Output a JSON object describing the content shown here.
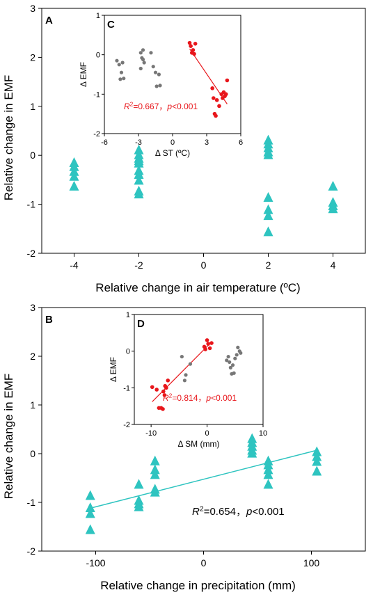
{
  "colors": {
    "main_marker": "#2ec4c0",
    "main_line": "#2ec4c0",
    "inset_gray": "#777777",
    "inset_red": "#e8161b"
  },
  "chart_data": [
    {
      "id": "A",
      "panel_label": "A",
      "type": "scatter",
      "marker": "triangle",
      "xlabel": "Relative change in air temperature (ºC)",
      "ylabel": "Relative change in EMF",
      "xlim": [
        -5,
        5
      ],
      "ylim": [
        -2,
        3
      ],
      "xticks": [
        -4,
        -2,
        0,
        2,
        4
      ],
      "yticks": [
        -2,
        -1,
        0,
        1,
        2,
        3
      ],
      "xtick_labels": [
        "-4",
        "-2",
        "0",
        "2",
        "4"
      ],
      "ytick_labels": [
        "-2",
        "-1",
        "0",
        "1",
        "2",
        "3"
      ],
      "points": [
        {
          "x": -4,
          "y": -0.14
        },
        {
          "x": -4,
          "y": -0.22
        },
        {
          "x": -4,
          "y": -0.32
        },
        {
          "x": -4,
          "y": -0.42
        },
        {
          "x": -4,
          "y": -0.62
        },
        {
          "x": -2,
          "y": 0.12
        },
        {
          "x": -2,
          "y": 0.02
        },
        {
          "x": -2,
          "y": -0.05
        },
        {
          "x": -2,
          "y": -0.1
        },
        {
          "x": -2,
          "y": -0.15
        },
        {
          "x": -2,
          "y": -0.3
        },
        {
          "x": -2,
          "y": -0.38
        },
        {
          "x": -2,
          "y": -0.5
        },
        {
          "x": -2,
          "y": -0.72
        },
        {
          "x": -2,
          "y": -0.78
        },
        {
          "x": 2,
          "y": 0.32
        },
        {
          "x": 2,
          "y": 0.24
        },
        {
          "x": 2,
          "y": 0.16
        },
        {
          "x": 2,
          "y": 0.08
        },
        {
          "x": 2,
          "y": 0.02
        },
        {
          "x": 2,
          "y": -0.85
        },
        {
          "x": 2,
          "y": -1.1
        },
        {
          "x": 2,
          "y": -1.22
        },
        {
          "x": 2,
          "y": -1.55
        },
        {
          "x": 4,
          "y": -0.62
        },
        {
          "x": 4,
          "y": -0.95
        },
        {
          "x": 4,
          "y": -1.02
        },
        {
          "x": 4,
          "y": -1.08
        }
      ],
      "inset": {
        "panel_label": "C",
        "type": "scatter",
        "xlabel": "Δ ST (ºC)",
        "ylabel": "Δ EMF",
        "xlim": [
          -6,
          6
        ],
        "ylim": [
          -2,
          1
        ],
        "xticks": [
          -6,
          -3,
          0,
          3,
          6
        ],
        "yticks": [
          -2,
          -1,
          0,
          1
        ],
        "xtick_labels": [
          "-6",
          "-3",
          "0",
          "3",
          "6"
        ],
        "ytick_labels": [
          "-2",
          "-1",
          "0",
          "1"
        ],
        "gray_points": [
          {
            "x": -4.9,
            "y": -0.15
          },
          {
            "x": -4.7,
            "y": -0.25
          },
          {
            "x": -4.4,
            "y": -0.2
          },
          {
            "x": -4.6,
            "y": -0.62
          },
          {
            "x": -4.3,
            "y": -0.6
          },
          {
            "x": -4.5,
            "y": -0.45
          },
          {
            "x": -2.8,
            "y": 0.05
          },
          {
            "x": -2.6,
            "y": 0.12
          },
          {
            "x": -2.7,
            "y": -0.08
          },
          {
            "x": -2.5,
            "y": -0.2
          },
          {
            "x": -2.8,
            "y": -0.35
          },
          {
            "x": -2.6,
            "y": -0.12
          },
          {
            "x": -1.9,
            "y": 0.05
          },
          {
            "x": -1.7,
            "y": -0.3
          },
          {
            "x": -1.5,
            "y": -0.45
          },
          {
            "x": -1.2,
            "y": -0.5
          },
          {
            "x": -1.4,
            "y": -0.8
          },
          {
            "x": -1.1,
            "y": -0.78
          }
        ],
        "red_points": [
          {
            "x": 1.5,
            "y": 0.3
          },
          {
            "x": 1.6,
            "y": 0.22
          },
          {
            "x": 1.8,
            "y": 0.12
          },
          {
            "x": 1.7,
            "y": 0.05
          },
          {
            "x": 2.0,
            "y": 0.28
          },
          {
            "x": 1.9,
            "y": 0.02
          },
          {
            "x": 3.5,
            "y": -0.85
          },
          {
            "x": 3.6,
            "y": -1.1
          },
          {
            "x": 3.7,
            "y": -1.5
          },
          {
            "x": 3.8,
            "y": -1.55
          },
          {
            "x": 3.9,
            "y": -1.15
          },
          {
            "x": 4.1,
            "y": -1.3
          },
          {
            "x": 4.3,
            "y": -1.0
          },
          {
            "x": 4.5,
            "y": -0.95
          },
          {
            "x": 4.6,
            "y": -1.05
          },
          {
            "x": 4.4,
            "y": -1.1
          },
          {
            "x": 4.8,
            "y": -0.65
          },
          {
            "x": 4.7,
            "y": -1.0
          }
        ],
        "fit_line": {
          "x": [
            1.5,
            4.8
          ],
          "y": [
            0.15,
            -1.25
          ]
        },
        "annotation": "R²=0.667，p<0.001"
      }
    },
    {
      "id": "B",
      "panel_label": "B",
      "type": "scatter",
      "marker": "triangle",
      "xlabel": "Relative change in precipitation (mm)",
      "ylabel": "Relative change in EMF",
      "xlim": [
        -150,
        150
      ],
      "ylim": [
        -2,
        3
      ],
      "xticks": [
        -100,
        0,
        100
      ],
      "yticks": [
        -2,
        -1,
        0,
        1,
        2,
        3
      ],
      "xtick_labels": [
        "-100",
        "0",
        "100"
      ],
      "ytick_labels": [
        "-2",
        "-1",
        "0",
        "1",
        "2",
        "3"
      ],
      "points": [
        {
          "x": -105,
          "y": -0.85
        },
        {
          "x": -105,
          "y": -1.1
        },
        {
          "x": -105,
          "y": -1.22
        },
        {
          "x": -105,
          "y": -1.55
        },
        {
          "x": -60,
          "y": -0.62
        },
        {
          "x": -60,
          "y": -0.95
        },
        {
          "x": -60,
          "y": -1.02
        },
        {
          "x": -60,
          "y": -1.08
        },
        {
          "x": -45,
          "y": -0.14
        },
        {
          "x": -45,
          "y": -0.32
        },
        {
          "x": -45,
          "y": -0.42
        },
        {
          "x": -45,
          "y": -0.72
        },
        {
          "x": -45,
          "y": -0.78
        },
        {
          "x": 45,
          "y": 0.32
        },
        {
          "x": 45,
          "y": 0.24
        },
        {
          "x": 45,
          "y": 0.16
        },
        {
          "x": 45,
          "y": 0.08
        },
        {
          "x": 45,
          "y": 0.02
        },
        {
          "x": 60,
          "y": -0.14
        },
        {
          "x": 60,
          "y": -0.22
        },
        {
          "x": 60,
          "y": -0.32
        },
        {
          "x": 60,
          "y": -0.42
        },
        {
          "x": 60,
          "y": -0.62
        },
        {
          "x": 105,
          "y": 0.05
        },
        {
          "x": 105,
          "y": -0.05
        },
        {
          "x": 105,
          "y": -0.15
        },
        {
          "x": 105,
          "y": -0.35
        }
      ],
      "fit_line": {
        "x": [
          -105,
          105
        ],
        "y": [
          -1.12,
          0.07
        ]
      },
      "annotation": "R²=0.654，p<0.001",
      "inset": {
        "panel_label": "D",
        "type": "scatter",
        "xlabel": "Δ SM (mm)",
        "ylabel": "Δ EMF",
        "xlim": [
          -13,
          10
        ],
        "ylim": [
          -2,
          1
        ],
        "xticks": [
          -10,
          0,
          10
        ],
        "yticks": [
          -2,
          -1,
          0,
          1
        ],
        "xtick_labels": [
          "-10",
          "0",
          "10"
        ],
        "ytick_labels": [
          "-2",
          "-1",
          "0",
          "1"
        ],
        "gray_points": [
          {
            "x": -4.5,
            "y": -0.15
          },
          {
            "x": -3.8,
            "y": -0.65
          },
          {
            "x": -4.0,
            "y": -0.8
          },
          {
            "x": -3.0,
            "y": -0.35
          },
          {
            "x": 3.5,
            "y": -0.25
          },
          {
            "x": 3.8,
            "y": -0.15
          },
          {
            "x": 4.0,
            "y": -0.3
          },
          {
            "x": 4.2,
            "y": -0.45
          },
          {
            "x": 4.4,
            "y": -0.62
          },
          {
            "x": 4.6,
            "y": -0.38
          },
          {
            "x": 4.8,
            "y": -0.6
          },
          {
            "x": 5.0,
            "y": -0.2
          },
          {
            "x": 5.3,
            "y": -0.1
          },
          {
            "x": 5.5,
            "y": 0.1
          },
          {
            "x": 5.8,
            "y": 0.0
          },
          {
            "x": 6.0,
            "y": -0.05
          }
        ],
        "red_points": [
          {
            "x": -9.8,
            "y": -0.98
          },
          {
            "x": -9.0,
            "y": -1.05
          },
          {
            "x": -8.6,
            "y": -1.55
          },
          {
            "x": -8.2,
            "y": -1.55
          },
          {
            "x": -7.9,
            "y": -1.58
          },
          {
            "x": -7.8,
            "y": -1.1
          },
          {
            "x": -7.6,
            "y": -1.2
          },
          {
            "x": -7.5,
            "y": -0.95
          },
          {
            "x": -7.3,
            "y": -1.0
          },
          {
            "x": -7.0,
            "y": -0.8
          },
          {
            "x": -0.5,
            "y": 0.12
          },
          {
            "x": -0.3,
            "y": 0.05
          },
          {
            "x": 0.0,
            "y": 0.3
          },
          {
            "x": 0.2,
            "y": 0.2
          },
          {
            "x": 0.5,
            "y": 0.08
          },
          {
            "x": 0.8,
            "y": 0.22
          }
        ],
        "fit_line": {
          "x": [
            -9.8,
            0.8
          ],
          "y": [
            -1.38,
            0.25
          ]
        },
        "annotation": "R²=0.814，p<0.001"
      }
    }
  ]
}
